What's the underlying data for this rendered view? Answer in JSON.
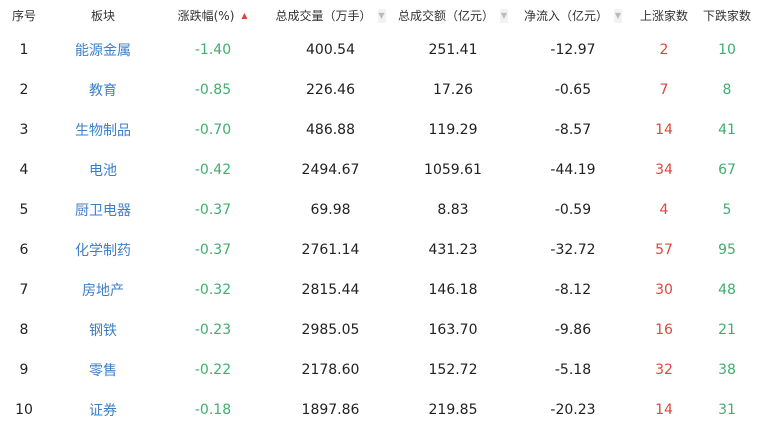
{
  "headers": {
    "rank": "序号",
    "sector": "板块",
    "change": "涨跌幅(%)",
    "volume": "总成交量（万手）",
    "amount": "总成交额（亿元）",
    "inflow": "净流入（亿元）",
    "up": "上涨家数",
    "down": "下跌家数"
  },
  "sort_icons": {
    "change": "sort-asc-icon",
    "volume": "sort-icon",
    "amount": "sort-icon",
    "inflow": "sort-icon"
  },
  "colors": {
    "sector": "#3d7fc9",
    "negative": "#3fae6e",
    "up": "#e0463e",
    "down": "#3fae6e"
  },
  "rows": [
    {
      "rank": "1",
      "sector": "能源金属",
      "change": "-1.40",
      "volume": "400.54",
      "amount": "251.41",
      "inflow": "-12.97",
      "up": "2",
      "down": "10"
    },
    {
      "rank": "2",
      "sector": "教育",
      "change": "-0.85",
      "volume": "226.46",
      "amount": "17.26",
      "inflow": "-0.65",
      "up": "7",
      "down": "8"
    },
    {
      "rank": "3",
      "sector": "生物制品",
      "change": "-0.70",
      "volume": "486.88",
      "amount": "119.29",
      "inflow": "-8.57",
      "up": "14",
      "down": "41"
    },
    {
      "rank": "4",
      "sector": "电池",
      "change": "-0.42",
      "volume": "2494.67",
      "amount": "1059.61",
      "inflow": "-44.19",
      "up": "34",
      "down": "67"
    },
    {
      "rank": "5",
      "sector": "厨卫电器",
      "change": "-0.37",
      "volume": "69.98",
      "amount": "8.83",
      "inflow": "-0.59",
      "up": "4",
      "down": "5"
    },
    {
      "rank": "6",
      "sector": "化学制药",
      "change": "-0.37",
      "volume": "2761.14",
      "amount": "431.23",
      "inflow": "-32.72",
      "up": "57",
      "down": "95"
    },
    {
      "rank": "7",
      "sector": "房地产",
      "change": "-0.32",
      "volume": "2815.44",
      "amount": "146.18",
      "inflow": "-8.12",
      "up": "30",
      "down": "48"
    },
    {
      "rank": "8",
      "sector": "钢铁",
      "change": "-0.23",
      "volume": "2985.05",
      "amount": "163.70",
      "inflow": "-9.86",
      "up": "16",
      "down": "21"
    },
    {
      "rank": "9",
      "sector": "零售",
      "change": "-0.22",
      "volume": "2178.60",
      "amount": "152.72",
      "inflow": "-5.18",
      "up": "32",
      "down": "38"
    },
    {
      "rank": "10",
      "sector": "证券",
      "change": "-0.18",
      "volume": "1897.86",
      "amount": "219.85",
      "inflow": "-20.23",
      "up": "14",
      "down": "31"
    }
  ]
}
